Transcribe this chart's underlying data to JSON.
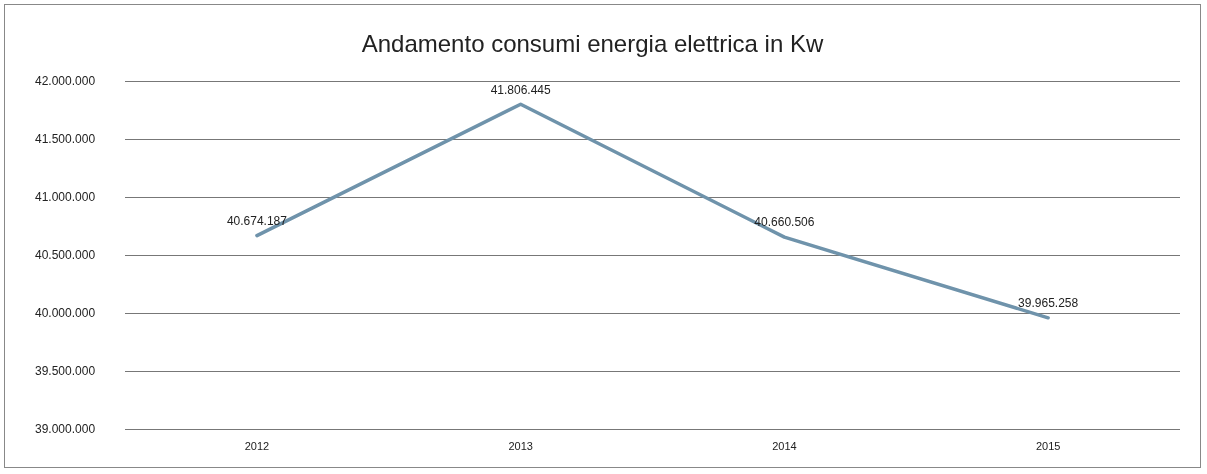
{
  "chart_data": {
    "type": "line",
    "title": "Andamento consumi energia elettrica in Kw",
    "categories": [
      "2012",
      "2013",
      "2014",
      "2015"
    ],
    "series": [
      {
        "color": "#6f93ab",
        "values": [
          40674187,
          41806445,
          40660506,
          39965258
        ],
        "value_labels": [
          "40.674.187",
          "41.806.445",
          "40.660.506",
          "39.965.258"
        ]
      }
    ],
    "ylim": [
      39000000,
      42000000
    ],
    "yticks": [
      {
        "value": 39000000,
        "label": "39.000.000"
      },
      {
        "value": 39500000,
        "label": "39.500.000"
      },
      {
        "value": 40000000,
        "label": "40.000.000"
      },
      {
        "value": 40500000,
        "label": "40.500.000"
      },
      {
        "value": 41000000,
        "label": "41.000.000"
      },
      {
        "value": 41500000,
        "label": "41.500.000"
      },
      {
        "value": 42000000,
        "label": "42.000.000"
      }
    ],
    "grid": "y",
    "legend": false,
    "marker": "none",
    "line_style": "solid"
  }
}
